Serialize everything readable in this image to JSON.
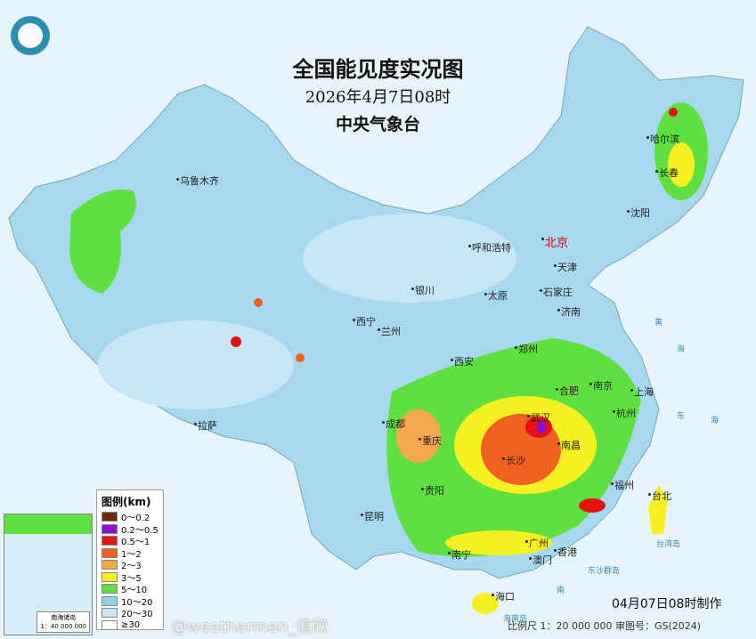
{
  "header": {
    "title": "全国能见度实况图",
    "datetime": "2026年4月7日08时",
    "agency": "中央气象台"
  },
  "cities": [
    {
      "name": "乌鲁木齐"
    },
    {
      "name": "哈尔滨"
    },
    {
      "name": "长春"
    },
    {
      "name": "沈阳"
    },
    {
      "name": "北京",
      "capital": true
    },
    {
      "name": "天津"
    },
    {
      "name": "呼和浩特"
    },
    {
      "name": "石家庄"
    },
    {
      "name": "太原"
    },
    {
      "name": "银川"
    },
    {
      "name": "济南"
    },
    {
      "name": "西宁"
    },
    {
      "name": "兰州"
    },
    {
      "name": "郑州"
    },
    {
      "name": "西安"
    },
    {
      "name": "合肥"
    },
    {
      "name": "南京"
    },
    {
      "name": "上海"
    },
    {
      "name": "杭州"
    },
    {
      "name": "武汉"
    },
    {
      "name": "成都"
    },
    {
      "name": "拉萨"
    },
    {
      "name": "重庆"
    },
    {
      "name": "南昌"
    },
    {
      "name": "长沙"
    },
    {
      "name": "福州"
    },
    {
      "name": "台北"
    },
    {
      "name": "贵阳"
    },
    {
      "name": "昆明"
    },
    {
      "name": "南宁"
    },
    {
      "name": "广州"
    },
    {
      "name": "香港"
    },
    {
      "name": "澳门"
    },
    {
      "name": "海口"
    }
  ],
  "seas": [
    "黄",
    "海",
    "东",
    "海",
    "台湾岛",
    "东沙群岛",
    "南",
    "海南岛"
  ],
  "legend": {
    "title": "图例(km)",
    "items": [
      {
        "label": "0～0.2",
        "color": "#6b2a10"
      },
      {
        "label": "0.2～0.5",
        "color": "#8a10e0"
      },
      {
        "label": "0.5～1",
        "color": "#e81010"
      },
      {
        "label": "1～2",
        "color": "#f06020"
      },
      {
        "label": "2～3",
        "color": "#f5a850"
      },
      {
        "label": "3～5",
        "color": "#f5f020"
      },
      {
        "label": "5～10",
        "color": "#60e040"
      },
      {
        "label": "10～20",
        "color": "#90d0ea"
      },
      {
        "label": "20～30",
        "color": "#c6e6f6"
      },
      {
        "label": "≥30",
        "color": "#ffffff"
      }
    ]
  },
  "inset": {
    "title": "南海诸岛",
    "scale": "1：40 000 000"
  },
  "footer": {
    "made": "04月07日08时制作",
    "scale_note": "比例尺 1：20 000 000   审图号：GS(2024)",
    "watermark": "@weatherman_信欣"
  }
}
